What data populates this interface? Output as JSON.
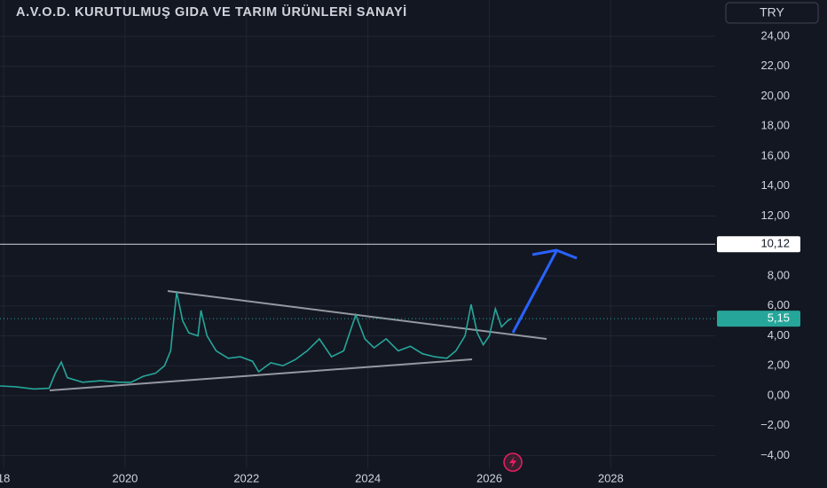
{
  "chart_data": {
    "type": "line",
    "title": "A.V.O.D. KURUTULMUŞ GIDA VE TARIM ÜRÜNLERİ SANAYİ",
    "currency": "TRY",
    "x": [
      2017.94,
      2018.2,
      2018.5,
      2018.75,
      2018.85,
      2018.95,
      2019.05,
      2019.3,
      2019.6,
      2019.9,
      2020.1,
      2020.3,
      2020.5,
      2020.65,
      2020.75,
      2020.8,
      2020.85,
      2020.95,
      2021.05,
      2021.2,
      2021.25,
      2021.35,
      2021.5,
      2021.7,
      2021.9,
      2022.1,
      2022.2,
      2022.4,
      2022.6,
      2022.8,
      2023.0,
      2023.2,
      2023.4,
      2023.6,
      2023.7,
      2023.8,
      2023.95,
      2024.1,
      2024.3,
      2024.5,
      2024.7,
      2024.9,
      2025.1,
      2025.3,
      2025.45,
      2025.6,
      2025.7,
      2025.8,
      2025.9,
      2026.0,
      2026.1,
      2026.2,
      2026.3,
      2026.36
    ],
    "values": [
      0.65,
      0.6,
      0.45,
      0.5,
      1.5,
      2.25,
      1.2,
      0.9,
      1.0,
      0.9,
      0.9,
      1.3,
      1.5,
      2.0,
      3.0,
      5.0,
      6.9,
      5.0,
      4.2,
      4.0,
      5.7,
      4.0,
      3.0,
      2.5,
      2.6,
      2.3,
      1.6,
      2.2,
      2.0,
      2.4,
      3.0,
      3.8,
      2.6,
      3.0,
      4.2,
      5.4,
      3.8,
      3.2,
      3.8,
      3.0,
      3.3,
      2.8,
      2.6,
      2.5,
      3.0,
      4.0,
      6.1,
      4.2,
      3.4,
      4.0,
      5.8,
      4.6,
      5.0,
      5.15
    ],
    "color": "#26a69a",
    "xlim": [
      2017.94,
      2029.72
    ],
    "ylim": [
      -4.86,
      26.43
    ],
    "xticks": [
      {
        "value": 2018,
        "label": "18"
      },
      2020,
      2022,
      2024,
      2026,
      2028
    ],
    "yticks": [
      {
        "value": -4,
        "label": "−4,00"
      },
      {
        "value": -2,
        "label": "−2,00"
      },
      {
        "value": 0,
        "label": "0,00"
      },
      {
        "value": 2,
        "label": "2,00"
      },
      {
        "value": 4,
        "label": "4,00"
      },
      {
        "value": 6,
        "label": "6,00"
      },
      {
        "value": 8,
        "label": "8,00"
      },
      {
        "value": 12,
        "label": "12,00"
      },
      {
        "value": 14,
        "label": "14,00"
      },
      {
        "value": 16,
        "label": "16,00"
      },
      {
        "value": 18,
        "label": "18,00"
      },
      {
        "value": 20,
        "label": "20,00"
      },
      {
        "value": 22,
        "label": "22,00"
      },
      {
        "value": 24,
        "label": "24,00"
      }
    ],
    "hline": {
      "value": 10.12,
      "label": "10,12"
    },
    "last_price": {
      "value": 5.15,
      "label": "5,15"
    },
    "grid": true
  }
}
